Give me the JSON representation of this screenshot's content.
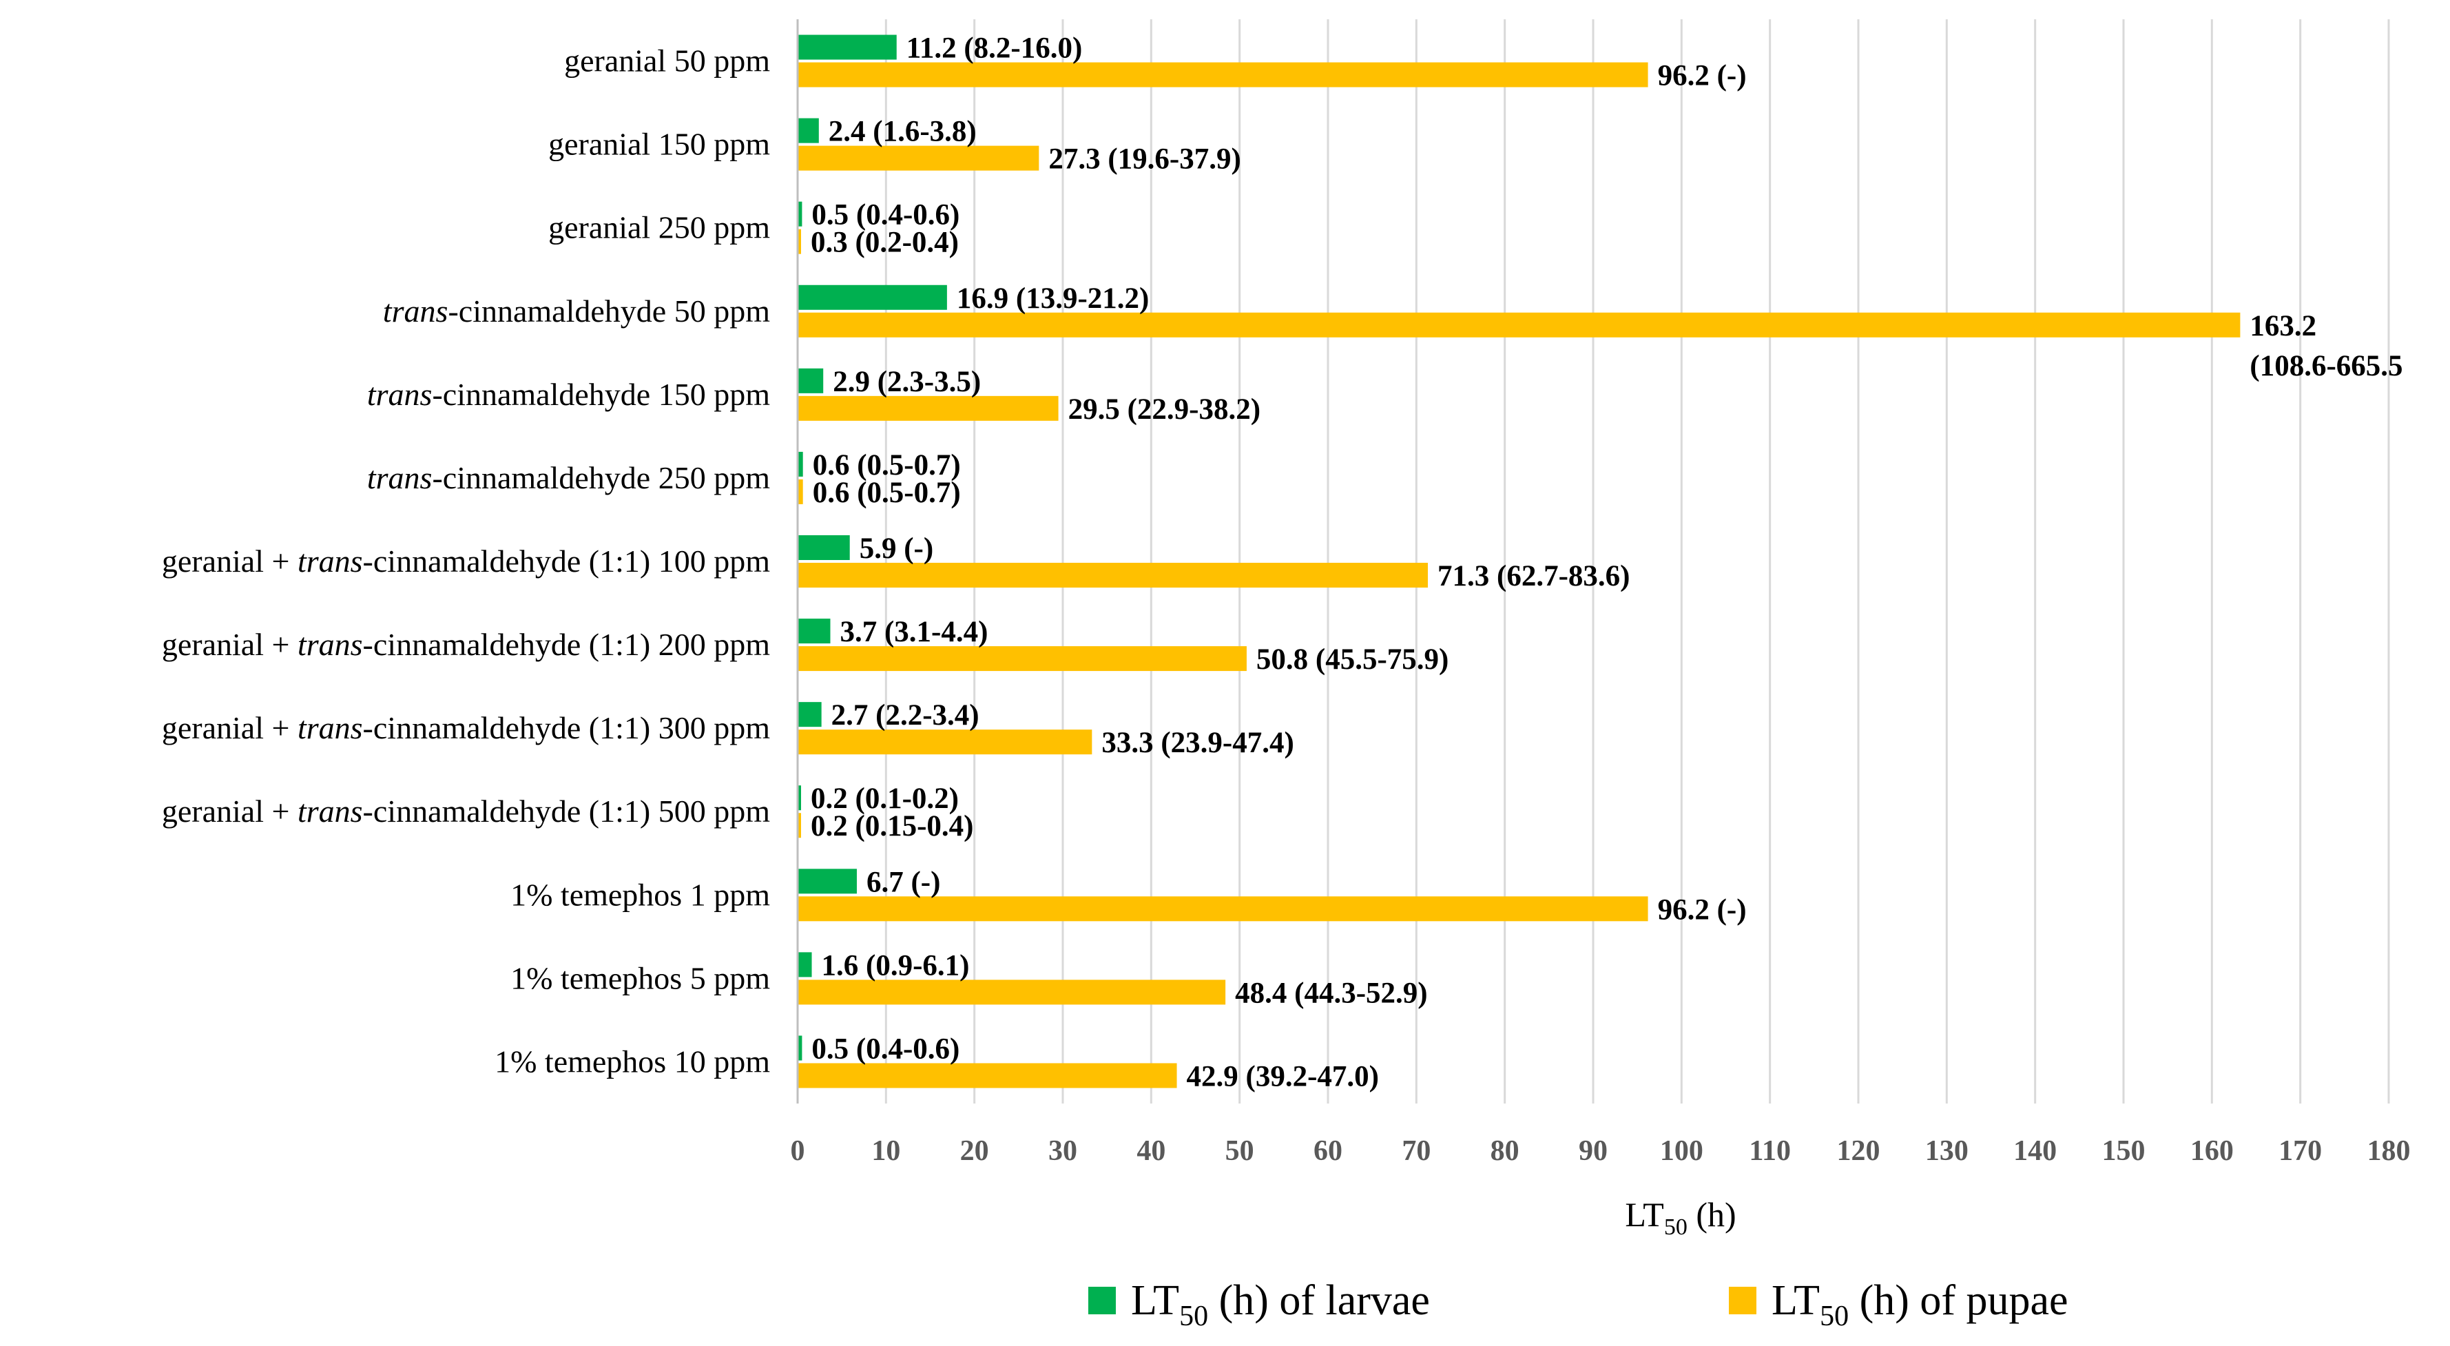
{
  "chart_data": {
    "type": "bar",
    "orientation": "horizontal",
    "xlabel": {
      "main": "LT",
      "sub": "50",
      "rest": " (h)"
    },
    "xlim": [
      0,
      180
    ],
    "xticks": [
      0,
      10,
      20,
      30,
      40,
      50,
      60,
      70,
      80,
      90,
      100,
      110,
      120,
      130,
      140,
      150,
      160,
      170,
      180
    ],
    "grid": true,
    "legend_position": "bottom",
    "categories": [
      {
        "parts": [
          {
            "t": "geranial 50 ppm",
            "i": false
          }
        ]
      },
      {
        "parts": [
          {
            "t": "geranial 150 ppm",
            "i": false
          }
        ]
      },
      {
        "parts": [
          {
            "t": "geranial 250 ppm",
            "i": false
          }
        ]
      },
      {
        "parts": [
          {
            "t": "trans",
            "i": true
          },
          {
            "t": "-cinnamaldehyde 50 ppm",
            "i": false
          }
        ]
      },
      {
        "parts": [
          {
            "t": "trans",
            "i": true
          },
          {
            "t": "-cinnamaldehyde 150 ppm",
            "i": false
          }
        ]
      },
      {
        "parts": [
          {
            "t": "trans",
            "i": true
          },
          {
            "t": "-cinnamaldehyde 250 ppm",
            "i": false
          }
        ]
      },
      {
        "parts": [
          {
            "t": "geranial + ",
            "i": false
          },
          {
            "t": "trans",
            "i": true
          },
          {
            "t": "-cinnamaldehyde (1:1) 100 ppm",
            "i": false
          }
        ]
      },
      {
        "parts": [
          {
            "t": "geranial + ",
            "i": false
          },
          {
            "t": "trans",
            "i": true
          },
          {
            "t": "-cinnamaldehyde (1:1) 200 ppm",
            "i": false
          }
        ]
      },
      {
        "parts": [
          {
            "t": "geranial + ",
            "i": false
          },
          {
            "t": "trans",
            "i": true
          },
          {
            "t": "-cinnamaldehyde (1:1) 300 ppm",
            "i": false
          }
        ]
      },
      {
        "parts": [
          {
            "t": "geranial + ",
            "i": false
          },
          {
            "t": "trans",
            "i": true
          },
          {
            "t": "-cinnamaldehyde (1:1) 500 ppm",
            "i": false
          }
        ]
      },
      {
        "parts": [
          {
            "t": "1% temephos 1 ppm",
            "i": false
          }
        ]
      },
      {
        "parts": [
          {
            "t": "1% temephos 5 ppm",
            "i": false
          }
        ]
      },
      {
        "parts": [
          {
            "t": "1% temephos 10 ppm",
            "i": false
          }
        ]
      }
    ],
    "series": [
      {
        "name": "LT50 (h) of larvae",
        "legend": {
          "main": "LT",
          "sub": "50",
          "rest": " (h) of larvae"
        },
        "color": "#00b050",
        "values": [
          11.2,
          2.4,
          0.5,
          16.9,
          2.9,
          0.6,
          5.9,
          3.7,
          2.7,
          0.2,
          6.7,
          1.6,
          0.5
        ],
        "labels": [
          [
            "11.2 (8.2-16.0)"
          ],
          [
            "2.4 (1.6-3.8)"
          ],
          [
            "0.5 (0.4-0.6)"
          ],
          [
            "16.9 (13.9-21.2)"
          ],
          [
            "2.9 (2.3-3.5)"
          ],
          [
            "0.6 (0.5-0.7)"
          ],
          [
            "5.9 (-)"
          ],
          [
            "3.7 (3.1-4.4)"
          ],
          [
            "2.7 (2.2-3.4)"
          ],
          [
            "0.2 (0.1-0.2)"
          ],
          [
            "6.7 (-)"
          ],
          [
            "1.6  (0.9-6.1)"
          ],
          [
            "0.5 (0.4-0.6)"
          ]
        ]
      },
      {
        "name": "LT50 (h) of pupae",
        "legend": {
          "main": "LT",
          "sub": "50",
          "rest": " (h) of pupae"
        },
        "color": "#ffc000",
        "values": [
          96.2,
          27.3,
          0.3,
          163.2,
          29.5,
          0.6,
          71.3,
          50.8,
          33.3,
          0.2,
          96.2,
          48.4,
          42.9
        ],
        "labels": [
          [
            "96.2 (-)"
          ],
          [
            "27.3 (19.6-37.9)"
          ],
          [
            "0.3 (0.2-0.4)"
          ],
          [
            "163.2",
            "(108.6-665.5"
          ],
          [
            "29.5 (22.9-38.2)"
          ],
          [
            "0.6 (0.5-0.7)"
          ],
          [
            "71.3 (62.7-83.6)"
          ],
          [
            "50.8 (45.5-75.9)"
          ],
          [
            "33.3 (23.9-47.4)"
          ],
          [
            "0.2 (0.15-0.4)"
          ],
          [
            "96.2 (-)"
          ],
          [
            "48.4 (44.3-52.9)"
          ],
          [
            "42.9 (39.2-47.0)"
          ]
        ]
      }
    ]
  }
}
